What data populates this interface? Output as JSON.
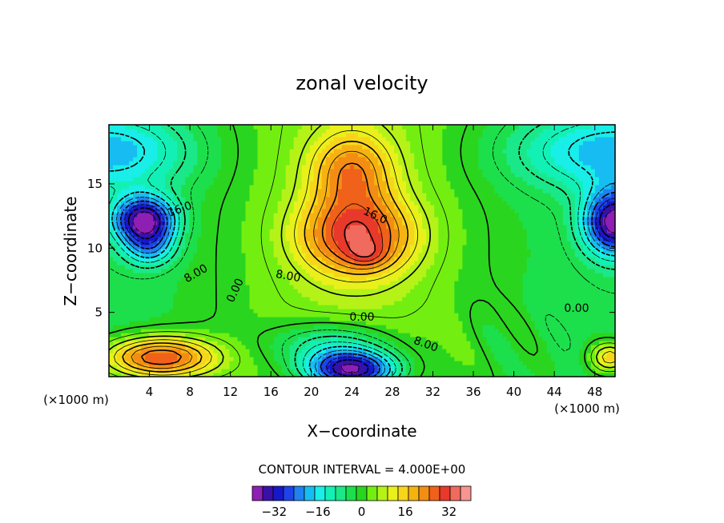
{
  "chart_data": {
    "type": "heatmap",
    "title": "zonal velocity",
    "xlabel": "X−coordinate",
    "ylabel": "Z−coordinate",
    "x_unit_left": "(×1000 m)",
    "x_unit_right": "(×1000 m)",
    "xlim": [
      0,
      50
    ],
    "ylim": [
      0,
      19.6
    ],
    "x_ticks": [
      4,
      8,
      12,
      16,
      20,
      24,
      28,
      32,
      36,
      40,
      44,
      48
    ],
    "y_ticks": [
      5,
      10,
      15
    ],
    "contour_interval_text": "CONTOUR INTERVAL = 4.000E+00",
    "contour_labels": [
      {
        "text": "16.0",
        "x": 7.0,
        "y": 13.0,
        "angle": -20
      },
      {
        "text": "16.0",
        "x": 26.3,
        "y": 12.5,
        "angle": 25
      },
      {
        "text": "8.00",
        "x": 8.6,
        "y": 8.0,
        "angle": -30
      },
      {
        "text": "8.00",
        "x": 17.7,
        "y": 7.8,
        "angle": 10
      },
      {
        "text": "0.00",
        "x": 12.5,
        "y": 6.7,
        "angle": -65
      },
      {
        "text": "0.00",
        "x": 25.0,
        "y": 4.6,
        "angle": 0
      },
      {
        "text": "0.00",
        "x": 46.2,
        "y": 5.3,
        "angle": 0
      },
      {
        "text": "8.00",
        "x": 31.3,
        "y": 2.5,
        "angle": 20
      }
    ],
    "colorbar": {
      "levels": [
        -40,
        40
      ],
      "tick_values": [
        -32,
        -16,
        0,
        16,
        32
      ],
      "tick_labels": [
        "−32",
        "−16",
        "0",
        "16",
        "32"
      ],
      "colors": [
        "#8e1fb5",
        "#3a10a8",
        "#1718c8",
        "#1d44e8",
        "#1f82f0",
        "#17bdf2",
        "#19eee8",
        "#13f0b6",
        "#1be888",
        "#1ddf4c",
        "#2ad51f",
        "#72ef10",
        "#b5f218",
        "#e9f01a",
        "#f7d51a",
        "#f5b211",
        "#f48d14",
        "#f0611a",
        "#e8392a",
        "#f06a5e",
        "#f69592"
      ]
    },
    "field_features": [
      {
        "type": "min",
        "x": 3.5,
        "y": 12.2,
        "value": -36,
        "sx": 3.0,
        "sy": 1.8
      },
      {
        "type": "min",
        "x": 4.0,
        "y": 10.0,
        "value": -14,
        "sx": 2.5,
        "sy": 1.5
      },
      {
        "type": "max",
        "x": 24.5,
        "y": 11.0,
        "value": 26,
        "sx": 5.5,
        "sy": 3.0
      },
      {
        "type": "max",
        "x": 25.5,
        "y": 9.5,
        "value": 8,
        "sx": 2.0,
        "sy": 1.0
      },
      {
        "type": "max",
        "x": 24.0,
        "y": 16.0,
        "value": 18,
        "sx": 4.0,
        "sy": 3.0
      },
      {
        "type": "min",
        "x": 24.0,
        "y": 0.5,
        "value": -40,
        "sx": 4.5,
        "sy": 1.5
      },
      {
        "type": "min",
        "x": 22.0,
        "y": 2.5,
        "value": -14,
        "sx": 6.0,
        "sy": 1.8
      },
      {
        "type": "min",
        "x": 50.0,
        "y": 12.0,
        "value": -36,
        "sx": 3.0,
        "sy": 2.5
      },
      {
        "type": "max",
        "x": 5.0,
        "y": 1.5,
        "value": 30,
        "sx": 5.5,
        "sy": 1.6
      },
      {
        "type": "max",
        "x": 49.5,
        "y": 1.5,
        "value": 18,
        "sx": 2.0,
        "sy": 1.2
      }
    ]
  }
}
